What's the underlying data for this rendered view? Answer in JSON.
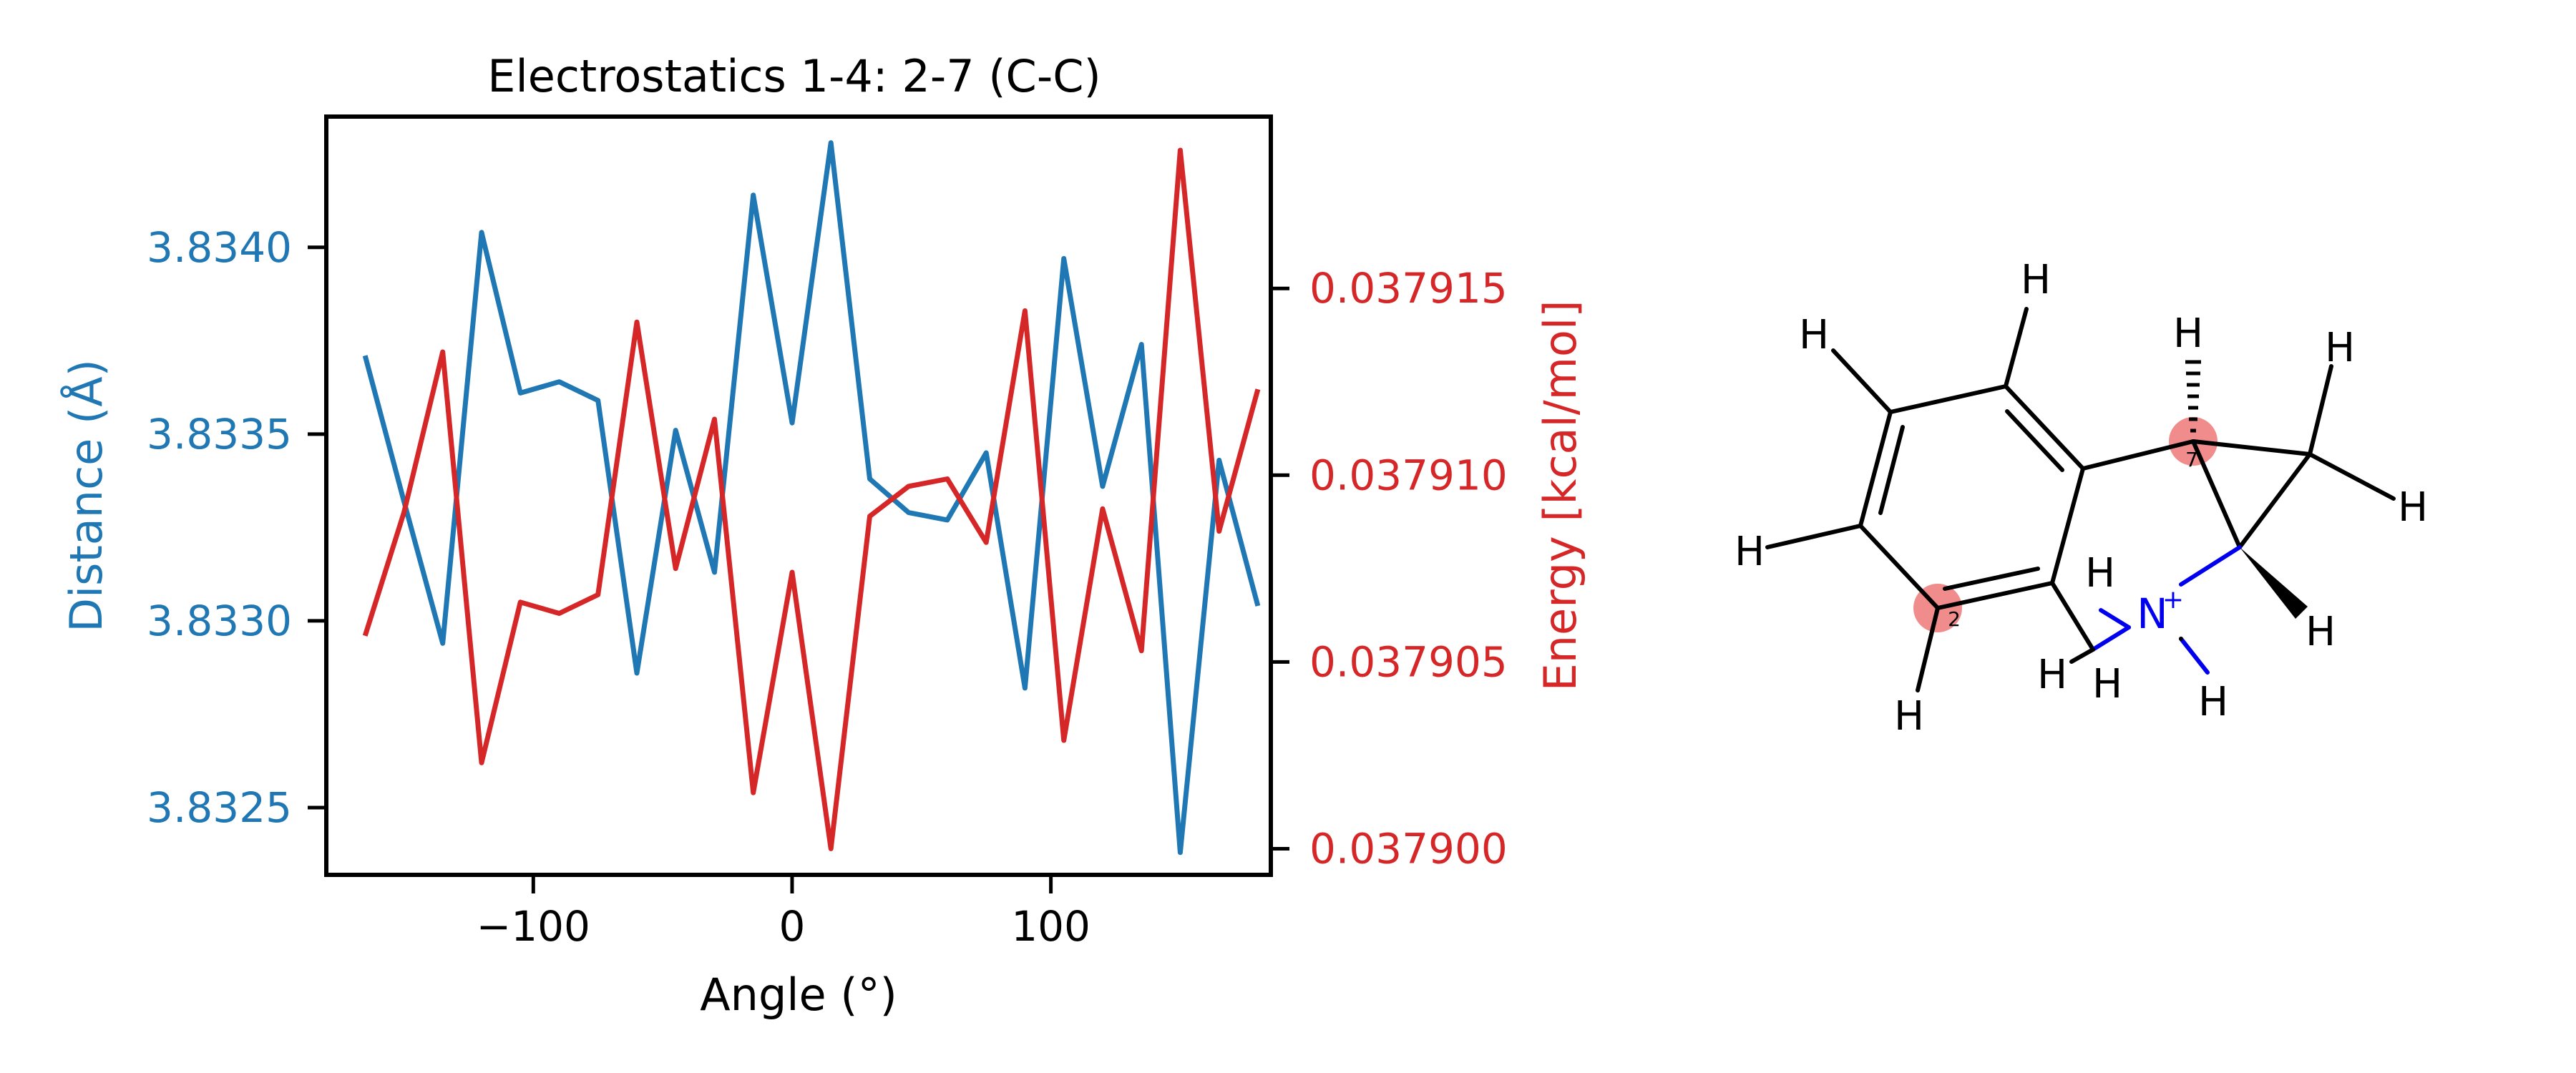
{
  "chart_data": {
    "type": "line",
    "title": "Electrostatics 1-4: 2-7 (C-C)",
    "xlabel": "Angle (°)",
    "ylabel_left": "Distance (Å)",
    "ylabel_right": "Energy [kcal/mol]",
    "xlim": [
      -180,
      185
    ],
    "ylim_left": [
      3.83232,
      3.83435
    ],
    "ylim_right": [
      0.0378993,
      0.0379196
    ],
    "xticks": [
      -100,
      0,
      100
    ],
    "xtick_labels": [
      "−100",
      "0",
      "100"
    ],
    "yticks_left": [
      3.8325,
      3.833,
      3.8335,
      3.834
    ],
    "ytick_labels_left": [
      "3.8325",
      "3.8330",
      "3.8335",
      "3.8340"
    ],
    "yticks_right": [
      0.0379,
      0.037905,
      0.03791,
      0.037915
    ],
    "ytick_labels_right": [
      "0.037900",
      "0.037905",
      "0.037910",
      "0.037915"
    ],
    "grid": false,
    "x": [
      -165,
      -150,
      -135,
      -120,
      -105,
      -90,
      -75,
      -60,
      -45,
      -30,
      -15,
      0,
      15,
      30,
      45,
      60,
      75,
      90,
      105,
      120,
      135,
      150,
      165,
      180
    ],
    "series": [
      {
        "axis": "left",
        "color": "#1f77b4",
        "values": [
          3.83371,
          3.83332,
          3.83294,
          3.83404,
          3.83361,
          3.83364,
          3.83359,
          3.83286,
          3.83351,
          3.83313,
          3.83414,
          3.83353,
          3.83428,
          3.83338,
          3.83329,
          3.83327,
          3.83345,
          3.83282,
          3.83397,
          3.83336,
          3.83374,
          3.83238,
          3.83343,
          3.83304
        ]
      },
      {
        "axis": "right",
        "color": "#d62728",
        "values": [
          0.0379057,
          0.037909,
          0.0379133,
          0.0379023,
          0.0379066,
          0.0379063,
          0.0379068,
          0.0379141,
          0.0379075,
          0.0379115,
          0.0379015,
          0.0379074,
          0.0379,
          0.0379089,
          0.0379097,
          0.0379099,
          0.0379082,
          0.0379144,
          0.0379029,
          0.0379091,
          0.0379053,
          0.0379187,
          0.0379085,
          0.0379123
        ]
      }
    ]
  },
  "molecule": {
    "atom_labels": [
      "H",
      "H",
      "H",
      "H",
      "H",
      "H",
      "H",
      "H",
      "H",
      "H",
      "H",
      "H",
      "N",
      "+"
    ],
    "index_labels": [
      "2",
      "7"
    ],
    "bond_color": "#000000",
    "nitrogen_color": "#0000ee",
    "highlight_color": "#f08080"
  }
}
